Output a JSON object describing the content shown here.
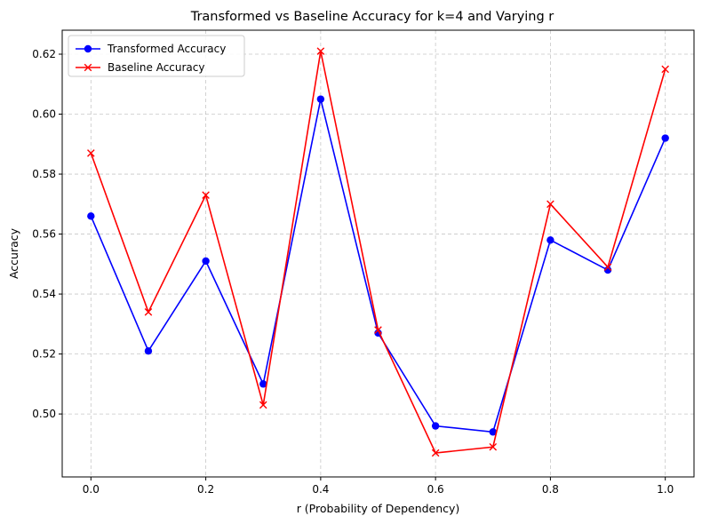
{
  "chart_data": {
    "type": "line",
    "title": "Transformed vs Baseline Accuracy for k=4 and Varying r",
    "xlabel": "r (Probability of Dependency)",
    "ylabel": "Accuracy",
    "x": [
      0.0,
      0.1,
      0.2,
      0.3,
      0.4,
      0.5,
      0.6,
      0.7,
      0.8,
      0.9,
      1.0
    ],
    "xlim": [
      -0.05,
      1.05
    ],
    "ylim": [
      0.479,
      0.628
    ],
    "xticks": [
      "0.0",
      "0.2",
      "0.4",
      "0.6",
      "0.8",
      "1.0"
    ],
    "xtick_values": [
      0.0,
      0.2,
      0.4,
      0.6,
      0.8,
      1.0
    ],
    "yticks": [
      "0.50",
      "0.52",
      "0.54",
      "0.56",
      "0.58",
      "0.60",
      "0.62"
    ],
    "ytick_values": [
      0.5,
      0.52,
      0.54,
      0.56,
      0.58,
      0.6,
      0.62
    ],
    "grid": true,
    "legend_position": "top-left",
    "series": [
      {
        "name": "Transformed Accuracy",
        "color": "#0000ff",
        "marker": "circle",
        "values": [
          0.566,
          0.521,
          0.551,
          0.51,
          0.605,
          0.527,
          0.496,
          0.494,
          0.558,
          0.548,
          0.592
        ]
      },
      {
        "name": "Baseline Accuracy",
        "color": "#ff0000",
        "marker": "x",
        "values": [
          0.587,
          0.534,
          0.573,
          0.503,
          0.621,
          0.528,
          0.487,
          0.489,
          0.57,
          0.549,
          0.615
        ]
      }
    ]
  }
}
